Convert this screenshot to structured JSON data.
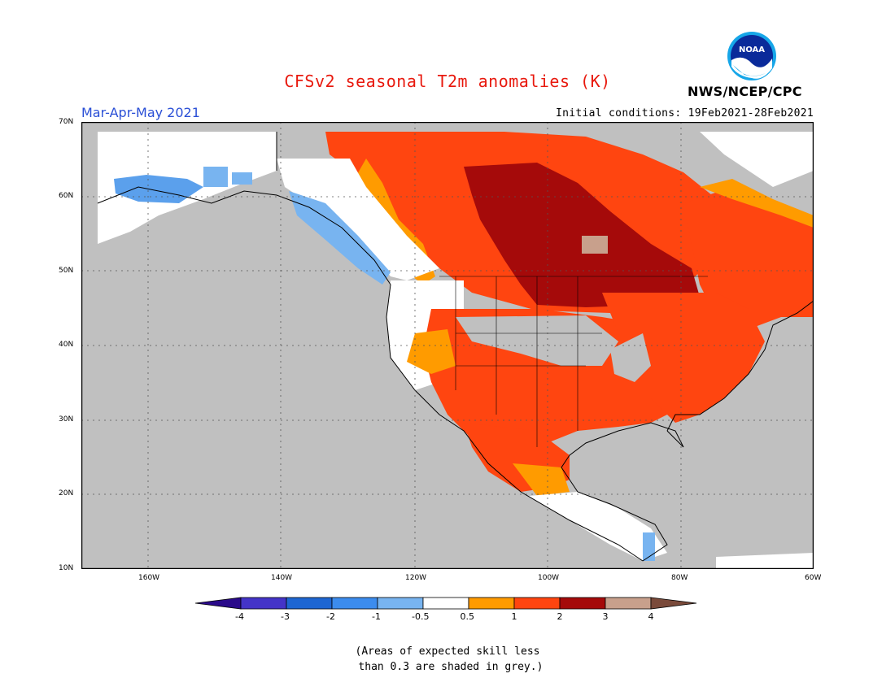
{
  "title": "CFSv2 seasonal T2m anomalies (K)",
  "season": "Mar-Apr-May 2021",
  "initial_conditions": "Initial conditions: 19Feb2021-28Feb2021",
  "agency": "NWS/NCEP/CPC",
  "logo_text": "NOAA",
  "colors": {
    "title": "#e8190e",
    "season": "#2a4fd6",
    "skill_grey": "#c0c0c0",
    "ocean": "#c0c0c0"
  },
  "lat_labels": [
    "70N",
    "60N",
    "50N",
    "40N",
    "30N",
    "20N",
    "10N"
  ],
  "lon_labels": [
    "160W",
    "140W",
    "120W",
    "100W",
    "80W",
    "60W"
  ],
  "colorbar": {
    "colors": [
      "#2a0a8a",
      "#4434c8",
      "#1e66d2",
      "#3c8cee",
      "#78b4f0",
      "#ffffff",
      "#ff9b00",
      "#ff4510",
      "#a50a0a",
      "#c8a08c",
      "#7a4a3a"
    ],
    "ticks": [
      "-4",
      "-3",
      "-2",
      "-1",
      "-0.5",
      "0.5",
      "1",
      "2",
      "3",
      "4"
    ]
  },
  "note": "(Areas of expected skill less\n than 0.3 are shaded in grey.)"
}
